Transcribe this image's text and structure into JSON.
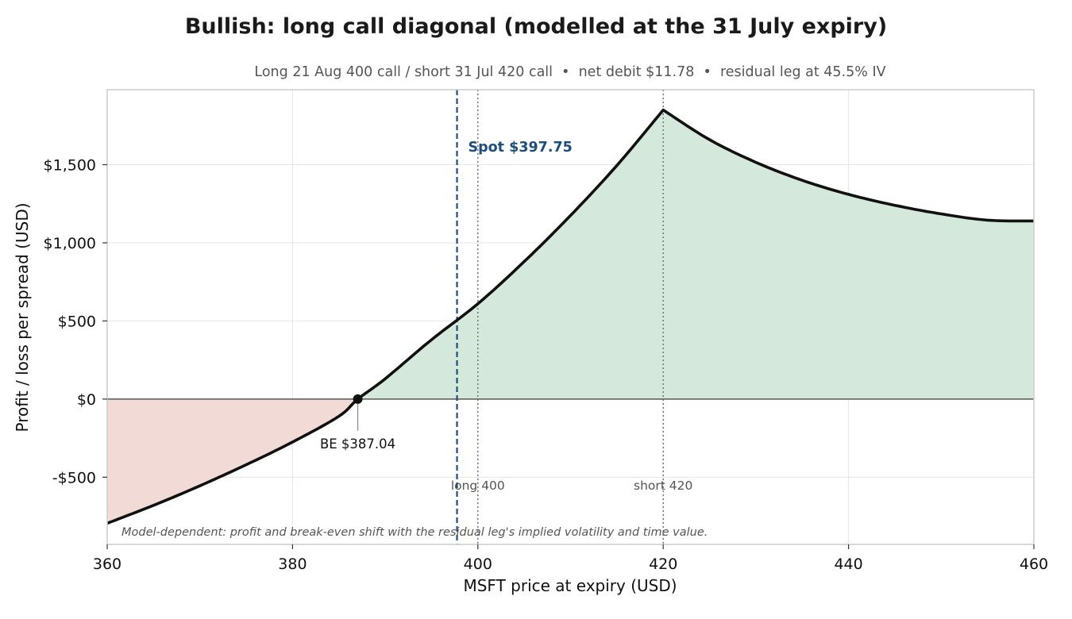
{
  "chart_data": {
    "type": "line",
    "title": "Bullish: long call diagonal (modelled at the 31 July expiry)",
    "subtitle": "Long 21 Aug 400 call / short 31 Jul 420 call  •  net debit $11.78  •  residual leg at 45.5% IV",
    "xlabel": "MSFT price at expiry (USD)",
    "ylabel": "Profit / loss per spread (USD)",
    "xlim": [
      360,
      460
    ],
    "ylim": [
      -930,
      1980
    ],
    "x_ticks": [
      360,
      380,
      400,
      420,
      440,
      460
    ],
    "x_tick_labels": [
      "360",
      "380",
      "400",
      "420",
      "440",
      "460"
    ],
    "y_ticks": [
      -500,
      0,
      500,
      1000,
      1500
    ],
    "y_tick_labels": [
      "-$500",
      "$0",
      "$500",
      "$1,000",
      "$1,500"
    ],
    "grid": true,
    "series": [
      {
        "x": [
          360,
          365,
          370,
          375,
          380,
          385,
          387.04,
          390,
          395,
          400,
          405,
          410,
          415,
          420,
          425,
          430,
          435,
          440,
          445,
          450,
          455,
          460
        ],
        "values": [
          -795,
          -680,
          -555,
          -420,
          -275,
          -110,
          0,
          130,
          380,
          610,
          880,
          1175,
          1495,
          1850,
          1660,
          1515,
          1400,
          1310,
          1240,
          1185,
          1145,
          1140
        ]
      }
    ],
    "spot": {
      "x": 397.75,
      "label": "Spot $397.75",
      "color": "#1f4e79"
    },
    "strikes": [
      {
        "x": 400,
        "label": "long 400"
      },
      {
        "x": 420,
        "label": "short 420"
      }
    ],
    "breakeven": {
      "x": 387.04,
      "y": 0,
      "label": "BE $387.04"
    },
    "note": "Model-dependent: profit and break-even shift with the residual leg's implied volatility and time value.",
    "colors": {
      "profit_fill": "#d5e8dc",
      "loss_fill": "#f2dbd7",
      "line": "#111111",
      "spot": "#1f4e79",
      "zero_line": "#555555",
      "grid": "#e6e6e6",
      "frame": "#cccccc"
    }
  }
}
